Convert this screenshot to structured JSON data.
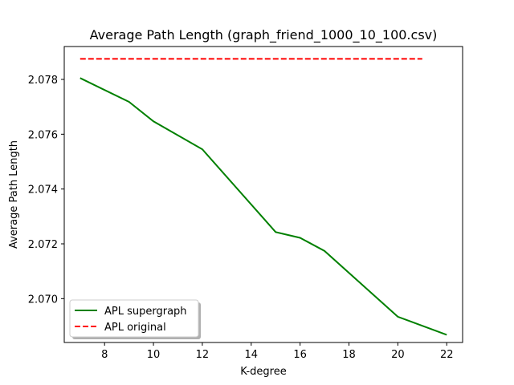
{
  "chart_data": {
    "type": "line",
    "title": "Average Path Length (graph_friend_1000_10_100.csv)",
    "xlabel": "K-degree",
    "ylabel": "Average Path Length",
    "xlim": [
      6.35,
      22.65
    ],
    "ylim": [
      2.0684,
      2.0792
    ],
    "xticks": [
      8,
      10,
      12,
      14,
      16,
      18,
      20,
      22
    ],
    "yticks": [
      2.07,
      2.072,
      2.074,
      2.076,
      2.078
    ],
    "ytick_labels": [
      "2.070",
      "2.072",
      "2.074",
      "2.076",
      "2.078"
    ],
    "grid": false,
    "legend_position": "lower-left",
    "series": [
      {
        "name": "APL supergraph",
        "color": "#008000",
        "style": "solid",
        "x": [
          7,
          9,
          10,
          12,
          15,
          16,
          17,
          20,
          22
        ],
        "y": [
          2.07805,
          2.07718,
          2.07647,
          2.07545,
          2.07243,
          2.07222,
          2.07174,
          2.06934,
          2.06868
        ]
      },
      {
        "name": "APL original",
        "color": "#ff0000",
        "style": "dashed",
        "x": [
          7,
          21
        ],
        "y": [
          2.07875,
          2.07875
        ]
      }
    ]
  }
}
